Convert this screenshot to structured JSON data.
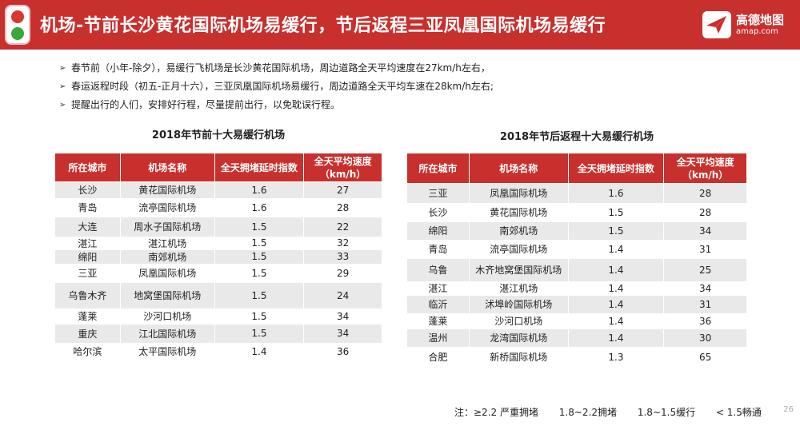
{
  "header": {
    "title": "机场-节前长沙黄花国际机场易缓行，节后返程三亚凤凰国际机场易缓行",
    "logo_name": "高德地图",
    "logo_url": "amap.com",
    "colors": {
      "header_bg": "#c8302e",
      "lamp_red": "#d9372f",
      "lamp_green": "#3aa63b"
    }
  },
  "bullets": [
    "春节前（小年-除夕），易缓行飞机场是长沙黄花国际机场，周边道路全天平均速度在27km/h左右，",
    "春运返程时段（初五-正月十六），三亚凤凰国际机场易缓行，周边道路全天平均车速在28km/h左右;",
    "提醒出行的人们，安排好行程，尽量提前出行，以免耽误行程。"
  ],
  "left_table": {
    "title": "2018年节前十大易缓行机场",
    "headers": [
      "所在城市",
      "机场名称",
      "全天拥堵延时指数",
      "全天平均速度（km/h）"
    ],
    "rows": [
      [
        "长沙",
        "黄花国际机场",
        "1.6",
        "27"
      ],
      [
        "青岛",
        "流亭国际机场",
        "1.6",
        "28"
      ],
      [
        "大连",
        "周水子国际机场",
        "1.5",
        "22"
      ],
      [
        "湛江",
        "湛江机场",
        "1.5",
        "32"
      ],
      [
        "绵阳",
        "南郊机场",
        "1.5",
        "33"
      ],
      [
        "三亚",
        "凤凰国际机场",
        "1.5",
        "29"
      ],
      [
        "乌鲁木齐",
        "地窝堡国际机场",
        "1.5",
        "24"
      ],
      [
        "蓬莱",
        "沙河口机场",
        "1.5",
        "34"
      ],
      [
        "重庆",
        "江北国际机场",
        "1.5",
        "34"
      ],
      [
        "哈尔滨",
        "太平国际机场",
        "1.4",
        "36"
      ]
    ]
  },
  "right_table": {
    "title": "2018年节后返程十大易缓行机场",
    "headers": [
      "所在城市",
      "机场名称",
      "全天拥堵延时指数",
      "全天平均速度（km/h）"
    ],
    "rows": [
      [
        "三亚",
        "凤凰国际机场",
        "1.6",
        "28"
      ],
      [
        "长沙",
        "黄花国际机场",
        "1.5",
        "28"
      ],
      [
        "绵阳",
        "南郊机场",
        "1.5",
        "34"
      ],
      [
        "青岛",
        "流亭国际机场",
        "1.4",
        "31"
      ],
      [
        "乌鲁",
        "木齐地窝堡国际机场",
        "1.4",
        "25"
      ],
      [
        "湛江",
        "湛江机场",
        "1.4",
        "34"
      ],
      [
        "临沂",
        "沭埠岭国际机场",
        "1.4",
        "31"
      ],
      [
        "蓬莱",
        "沙河口机场",
        "1.4",
        "36"
      ],
      [
        "温州",
        "龙湾国际机场",
        "1.4",
        "30"
      ],
      [
        "合肥",
        "新桥国际机场",
        "1.3",
        "65"
      ]
    ]
  },
  "legend": {
    "items": [
      "注：≥2.2 严重拥堵",
      "1.8~2.2拥堵",
      "1.8~1.5缓行",
      "< 1.5畅通"
    ]
  },
  "page_number": "26"
}
